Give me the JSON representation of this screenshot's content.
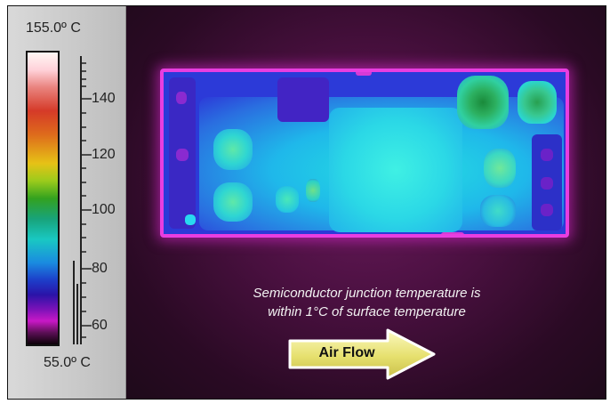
{
  "scale": {
    "max_label": "155.0º C",
    "min_label": "55.0º C",
    "max_value": 155.0,
    "min_value": 55.0,
    "ticks": [
      "140",
      "120",
      "100",
      "80",
      "60"
    ]
  },
  "caption": {
    "line1": "Semiconductor junction temperature is",
    "line2": "within 1°C of surface temperature"
  },
  "arrow": {
    "label": "Air Flow"
  }
}
